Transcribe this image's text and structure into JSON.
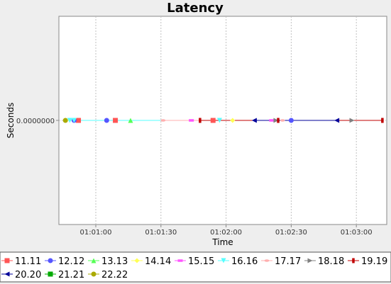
{
  "chart_data": {
    "type": "line",
    "title": "Latency",
    "xlabel": "Time",
    "ylabel": "Seconds",
    "x_range": [
      "01:00:43",
      "01:03:14"
    ],
    "x_ticks": [
      "01:01:00",
      "01:01:30",
      "01:02:00",
      "01:02:30",
      "01:03:00"
    ],
    "y_ticks": [
      "0.0000000"
    ],
    "ylim": [
      -1,
      1
    ],
    "grid": true,
    "legend_position": "bottom",
    "series": [
      {
        "name": "11.11",
        "color": "#ff5555",
        "marker": "square",
        "points": [
          [
            "01:00:52",
            0
          ],
          [
            "01:01:09",
            0
          ],
          [
            "01:01:54",
            0
          ]
        ]
      },
      {
        "name": "12.12",
        "color": "#5555ff",
        "marker": "circle",
        "points": [
          [
            "01:00:50",
            0
          ],
          [
            "01:01:05",
            0
          ],
          [
            "01:02:30",
            0
          ]
        ]
      },
      {
        "name": "13.13",
        "color": "#55ff55",
        "marker": "triangle-up",
        "points": [
          [
            "01:01:16",
            0
          ]
        ]
      },
      {
        "name": "14.14",
        "color": "#ffff55",
        "marker": "diamond",
        "points": [
          [
            "01:00:46",
            0
          ],
          [
            "01:02:03",
            0
          ]
        ]
      },
      {
        "name": "15.15",
        "color": "#ff55ff",
        "marker": "rect-h",
        "points": [
          [
            "01:01:44",
            0
          ],
          [
            "01:02:21",
            0
          ]
        ]
      },
      {
        "name": "16.16",
        "color": "#55ffff",
        "marker": "triangle-down",
        "points": [
          [
            "01:00:48",
            0
          ],
          [
            "01:00:50",
            0
          ],
          [
            "01:01:57",
            0
          ]
        ]
      },
      {
        "name": "17.17",
        "color": "#ffafaf",
        "marker": "ellipse",
        "points": [
          [
            "01:01:31",
            0
          ],
          [
            "01:02:26",
            0
          ]
        ]
      },
      {
        "name": "18.18",
        "color": "#808080",
        "marker": "triangle-right",
        "points": [
          [
            "01:02:23",
            0
          ],
          [
            "01:02:58",
            0
          ]
        ]
      },
      {
        "name": "19.19",
        "color": "#c00000",
        "marker": "rect-v",
        "points": [
          [
            "01:01:48",
            0
          ],
          [
            "01:02:24",
            0
          ],
          [
            "01:03:12",
            0
          ]
        ]
      },
      {
        "name": "20.20",
        "color": "#000099",
        "marker": "triangle-left",
        "points": [
          [
            "01:02:13",
            0
          ],
          [
            "01:02:51",
            0
          ]
        ]
      },
      {
        "name": "21.21",
        "color": "#00aa00",
        "marker": "square",
        "points": []
      },
      {
        "name": "22.22",
        "color": "#aaaa00",
        "marker": "circle",
        "points": [
          [
            "01:00:46",
            0
          ]
        ]
      }
    ]
  },
  "colors": {
    "background": "#eeeeee",
    "plot_background": "#ffffff",
    "gridline": "#c0c0c0",
    "axis": "#888888",
    "title": "#000000"
  }
}
